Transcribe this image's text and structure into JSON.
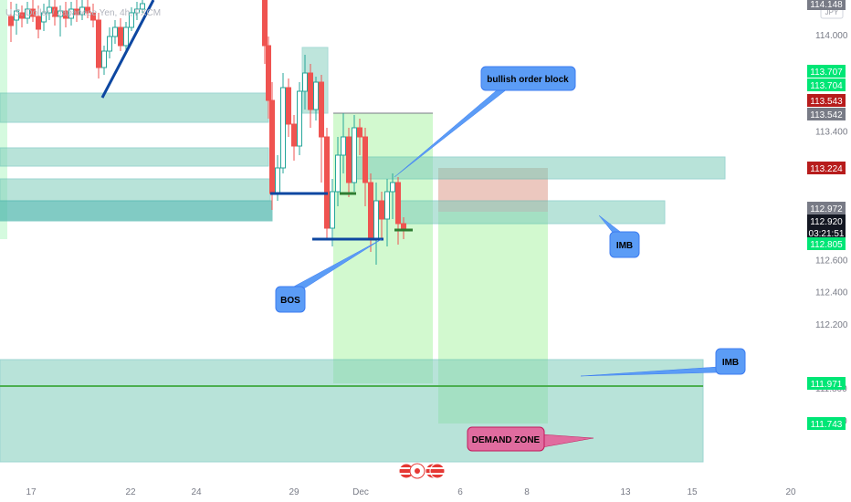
{
  "chart_data": {
    "type": "candlestick",
    "symbol_title": "U.S. Dollar / Japanese Yen, 4h, FXCM",
    "currency": "JPY",
    "y_ticks": [
      "114.000",
      "113.400",
      "112.600",
      "112.400",
      "112.200",
      "111.800",
      "111.600"
    ],
    "x_ticks": [
      "17",
      "22",
      "24",
      "29",
      "Dec",
      "6",
      "8",
      "13",
      "15",
      "20"
    ],
    "price_badges": [
      {
        "label": "114.148",
        "color": "#787b86"
      },
      {
        "label": "113.707",
        "color": "#00e676"
      },
      {
        "label": "113.704",
        "color": "#00e676"
      },
      {
        "label": "113.543",
        "color": "#b71c1c"
      },
      {
        "label": "113.542",
        "color": "#787b86"
      },
      {
        "label": "113.224",
        "color": "#b71c1c"
      },
      {
        "label": "112.972",
        "color": "#787b86"
      },
      {
        "label": "112.920",
        "color": "#131722"
      },
      {
        "label": "03:21:51",
        "color": "#131722"
      },
      {
        "label": "112.805",
        "color": "#00e676"
      },
      {
        "label": "111.971",
        "color": "#00e676"
      },
      {
        "label": "111.743",
        "color": "#00e676"
      }
    ],
    "annotations": [
      {
        "text": "bullish order block",
        "color": "#5b9cf6"
      },
      {
        "text": "IMB",
        "color": "#5b9cf6"
      },
      {
        "text": "BOS",
        "color": "#5b9cf6"
      },
      {
        "text": "IMB",
        "color": "#5b9cf6"
      },
      {
        "text": "DEMAND ZONE",
        "color": "#e06c9f"
      }
    ],
    "colors": {
      "up": "#26a69a",
      "down": "#ef5350",
      "zone": "#7fcdbb",
      "long_zone": "#a5f3a0",
      "short_zone": "#f7b3b8"
    }
  }
}
